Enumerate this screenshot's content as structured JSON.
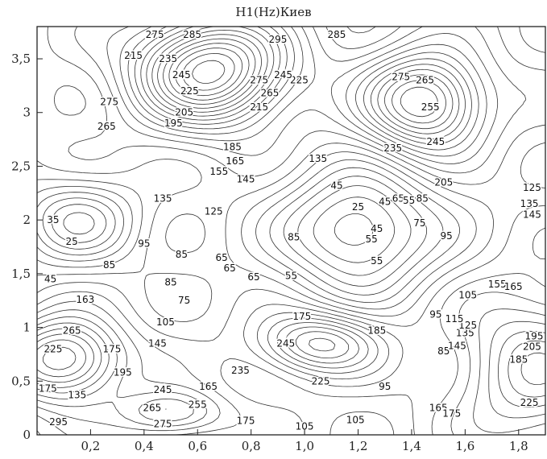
{
  "chart_data": {
    "type": "contour",
    "title": "H1(Hz)Киев",
    "xlabel": "",
    "ylabel": "",
    "xlim": [
      0,
      1.9
    ],
    "ylim": [
      0,
      3.8
    ],
    "x_ticks": [
      {
        "value": 0.2,
        "label": "0,2"
      },
      {
        "value": 0.4,
        "label": "0,4"
      },
      {
        "value": 0.6,
        "label": "0,6"
      },
      {
        "value": 0.8,
        "label": "0,8"
      },
      {
        "value": 1.0,
        "label": "1,0"
      },
      {
        "value": 1.2,
        "label": "1,2"
      },
      {
        "value": 1.4,
        "label": "1,4"
      },
      {
        "value": 1.6,
        "label": "1,6"
      },
      {
        "value": 1.8,
        "label": "1,8"
      }
    ],
    "y_ticks": [
      {
        "value": 0,
        "label": "0"
      },
      {
        "value": 0.5,
        "label": "0,5"
      },
      {
        "value": 1,
        "label": "1"
      },
      {
        "value": 1.5,
        "label": "1,5"
      },
      {
        "value": 2,
        "label": "2"
      },
      {
        "value": 2.5,
        "label": "2,5"
      },
      {
        "value": 3,
        "label": "3"
      },
      {
        "value": 3.5,
        "label": "3,5"
      }
    ],
    "grid": false,
    "contour_levels": [
      {
        "x": 0.9,
        "y": 3.68,
        "label": "295"
      },
      {
        "x": 1.12,
        "y": 3.77,
        "label": "285"
      },
      {
        "x": 1.36,
        "y": 3.33,
        "label": "275"
      },
      {
        "x": 0.98,
        "y": 3.3,
        "label": "225"
      },
      {
        "x": 0.83,
        "y": 3.3,
        "label": "275"
      },
      {
        "x": 0.92,
        "y": 3.35,
        "label": "245"
      },
      {
        "x": 0.55,
        "y": 3.0,
        "label": "205"
      },
      {
        "x": 0.51,
        "y": 2.9,
        "label": "195"
      },
      {
        "x": 0.26,
        "y": 2.87,
        "label": "265"
      },
      {
        "x": 0.27,
        "y": 3.1,
        "label": "275"
      },
      {
        "x": 0.36,
        "y": 3.53,
        "label": "215"
      },
      {
        "x": 0.49,
        "y": 3.5,
        "label": "235"
      },
      {
        "x": 0.54,
        "y": 3.35,
        "label": "245"
      },
      {
        "x": 0.57,
        "y": 3.2,
        "label": "225"
      },
      {
        "x": 0.44,
        "y": 3.73,
        "label": "275"
      },
      {
        "x": 0.58,
        "y": 3.73,
        "label": "285"
      },
      {
        "x": 0.87,
        "y": 3.18,
        "label": "265"
      },
      {
        "x": 0.83,
        "y": 3.05,
        "label": "215"
      },
      {
        "x": 1.47,
        "y": 3.05,
        "label": "255"
      },
      {
        "x": 1.33,
        "y": 2.67,
        "label": "235"
      },
      {
        "x": 1.49,
        "y": 2.73,
        "label": "245"
      },
      {
        "x": 1.52,
        "y": 2.35,
        "label": "205"
      },
      {
        "x": 1.45,
        "y": 3.3,
        "label": "265"
      },
      {
        "x": 0.73,
        "y": 2.68,
        "label": "185"
      },
      {
        "x": 0.74,
        "y": 2.55,
        "label": "165"
      },
      {
        "x": 0.68,
        "y": 2.45,
        "label": "155"
      },
      {
        "x": 0.78,
        "y": 2.38,
        "label": "145"
      },
      {
        "x": 1.05,
        "y": 2.57,
        "label": "135"
      },
      {
        "x": 0.66,
        "y": 2.08,
        "label": "125"
      },
      {
        "x": 0.47,
        "y": 2.2,
        "label": "135"
      },
      {
        "x": 1.12,
        "y": 2.32,
        "label": "45"
      },
      {
        "x": 1.2,
        "y": 2.12,
        "label": "25"
      },
      {
        "x": 1.3,
        "y": 2.17,
        "label": "45"
      },
      {
        "x": 1.35,
        "y": 2.2,
        "label": "65"
      },
      {
        "x": 1.39,
        "y": 2.18,
        "label": "55"
      },
      {
        "x": 1.44,
        "y": 2.2,
        "label": "85"
      },
      {
        "x": 1.43,
        "y": 1.97,
        "label": "75"
      },
      {
        "x": 1.53,
        "y": 1.85,
        "label": "95"
      },
      {
        "x": 1.27,
        "y": 1.92,
        "label": "45"
      },
      {
        "x": 1.25,
        "y": 1.82,
        "label": "55"
      },
      {
        "x": 1.27,
        "y": 1.62,
        "label": "55"
      },
      {
        "x": 0.06,
        "y": 2.0,
        "label": "35"
      },
      {
        "x": 0.13,
        "y": 1.8,
        "label": "25"
      },
      {
        "x": 0.27,
        "y": 1.58,
        "label": "85"
      },
      {
        "x": 0.4,
        "y": 1.78,
        "label": "95"
      },
      {
        "x": 0.54,
        "y": 1.68,
        "label": "85"
      },
      {
        "x": 0.69,
        "y": 1.65,
        "label": "65"
      },
      {
        "x": 0.5,
        "y": 1.42,
        "label": "85"
      },
      {
        "x": 0.55,
        "y": 1.25,
        "label": "75"
      },
      {
        "x": 0.48,
        "y": 1.05,
        "label": "105"
      },
      {
        "x": 0.45,
        "y": 0.85,
        "label": "145"
      },
      {
        "x": 0.28,
        "y": 0.8,
        "label": "175"
      },
      {
        "x": 0.32,
        "y": 0.58,
        "label": "195"
      },
      {
        "x": 0.06,
        "y": 0.8,
        "label": "225"
      },
      {
        "x": 0.13,
        "y": 0.97,
        "label": "265"
      },
      {
        "x": 0.18,
        "y": 1.26,
        "label": "163"
      },
      {
        "x": 0.05,
        "y": 1.45,
        "label": "45"
      },
      {
        "x": 0.04,
        "y": 0.43,
        "label": "175"
      },
      {
        "x": 0.15,
        "y": 0.37,
        "label": "135"
      },
      {
        "x": 0.08,
        "y": 0.12,
        "label": "295"
      },
      {
        "x": 0.47,
        "y": 0.42,
        "label": "245"
      },
      {
        "x": 0.43,
        "y": 0.25,
        "label": "265"
      },
      {
        "x": 0.47,
        "y": 0.1,
        "label": "275"
      },
      {
        "x": 0.6,
        "y": 0.28,
        "label": "255"
      },
      {
        "x": 0.64,
        "y": 0.45,
        "label": "165"
      },
      {
        "x": 0.78,
        "y": 0.13,
        "label": "175"
      },
      {
        "x": 1.0,
        "y": 0.08,
        "label": "105"
      },
      {
        "x": 1.19,
        "y": 0.14,
        "label": "105"
      },
      {
        "x": 1.3,
        "y": 0.45,
        "label": "95"
      },
      {
        "x": 1.5,
        "y": 0.25,
        "label": "165"
      },
      {
        "x": 1.55,
        "y": 0.2,
        "label": "175"
      },
      {
        "x": 1.52,
        "y": 0.78,
        "label": "85"
      },
      {
        "x": 1.57,
        "y": 0.83,
        "label": "145"
      },
      {
        "x": 1.6,
        "y": 0.95,
        "label": "135"
      },
      {
        "x": 1.61,
        "y": 1.02,
        "label": "125"
      },
      {
        "x": 1.56,
        "y": 1.08,
        "label": "115"
      },
      {
        "x": 1.49,
        "y": 1.12,
        "label": "95"
      },
      {
        "x": 1.61,
        "y": 1.3,
        "label": "105"
      },
      {
        "x": 1.72,
        "y": 1.4,
        "label": "155"
      },
      {
        "x": 1.78,
        "y": 1.38,
        "label": "165"
      },
      {
        "x": 1.8,
        "y": 0.7,
        "label": "185"
      },
      {
        "x": 1.85,
        "y": 0.82,
        "label": "205"
      },
      {
        "x": 1.86,
        "y": 0.92,
        "label": "195"
      },
      {
        "x": 1.84,
        "y": 0.3,
        "label": "225"
      },
      {
        "x": 1.85,
        "y": 2.05,
        "label": "145"
      },
      {
        "x": 1.84,
        "y": 2.15,
        "label": "135"
      },
      {
        "x": 1.85,
        "y": 2.3,
        "label": "125"
      },
      {
        "x": 0.76,
        "y": 0.6,
        "label": "235"
      },
      {
        "x": 0.93,
        "y": 0.85,
        "label": "245"
      },
      {
        "x": 0.99,
        "y": 1.1,
        "label": "175"
      },
      {
        "x": 1.06,
        "y": 0.5,
        "label": "225"
      },
      {
        "x": 1.27,
        "y": 0.97,
        "label": "185"
      },
      {
        "x": 0.96,
        "y": 1.84,
        "label": "85"
      },
      {
        "x": 0.72,
        "y": 1.55,
        "label": "65"
      },
      {
        "x": 0.81,
        "y": 1.47,
        "label": "65"
      },
      {
        "x": 0.95,
        "y": 1.48,
        "label": "55"
      }
    ]
  }
}
